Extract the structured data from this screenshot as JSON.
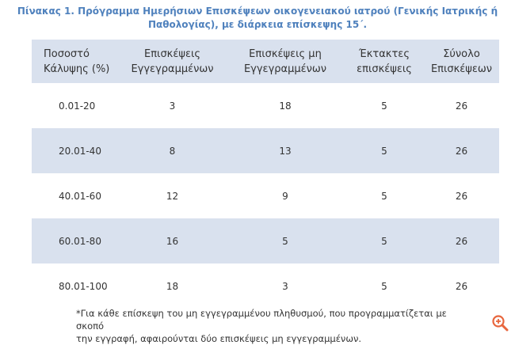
{
  "title": {
    "line1": "Πίνακας 1. Πρόγραμμα Ημερήσιων Επισκέψεων οικογενειακού ιατρού (Γενικής Ιατρικής ή",
    "line2": "Παθολογίας), με διάρκεια επίσκεψης 15΄."
  },
  "table": {
    "headers": [
      {
        "line1": "Ποσοστό",
        "line2": "Κάλυψης (%)"
      },
      {
        "line1": "Επισκέψεις",
        "line2": "Εγγεγραμμένων"
      },
      {
        "line1": "Επισκέψεις μη",
        "line2": "Εγγεγραμμένων"
      },
      {
        "line1": "Έκτακτες",
        "line2": "επισκέψεις"
      },
      {
        "line1": "Σύνολο",
        "line2": "Επισκέψεων"
      }
    ],
    "rows": [
      [
        "0.01-20",
        "3",
        "18",
        "5",
        "26"
      ],
      [
        "20.01-40",
        "8",
        "13",
        "5",
        "26"
      ],
      [
        "40.01-60",
        "12",
        "9",
        "5",
        "26"
      ],
      [
        "60.01-80",
        "16",
        "5",
        "5",
        "26"
      ],
      [
        "80.01-100",
        "18",
        "3",
        "5",
        "26"
      ]
    ]
  },
  "footnote": {
    "line1": "*Για κάθε επίσκεψη του μη εγγεγραμμένου πληθυσμού, που προγραμματίζεται με σκοπό",
    "line2": "την εγγραφή, αφαιρούνται δύο επισκέψεις μη εγγεγραμμένων."
  },
  "colors": {
    "title": "#4f81bd",
    "shade": "#d9e1ee",
    "text": "#333333",
    "zoom_icon": "#e8663d"
  },
  "icons": {
    "zoom": "zoom-in-icon"
  }
}
